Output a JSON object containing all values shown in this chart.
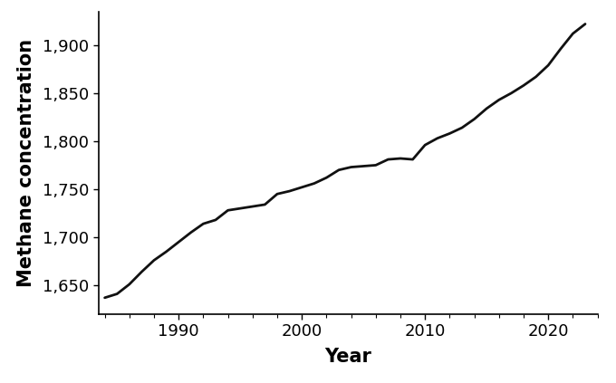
{
  "years": [
    1984,
    1985,
    1986,
    1987,
    1988,
    1989,
    1990,
    1991,
    1992,
    1993,
    1994,
    1995,
    1996,
    1997,
    1998,
    1999,
    2000,
    2001,
    2002,
    2003,
    2004,
    2005,
    2006,
    2007,
    2008,
    2009,
    2010,
    2011,
    2012,
    2013,
    2014,
    2015,
    2016,
    2017,
    2018,
    2019,
    2020,
    2021,
    2022,
    2023
  ],
  "methane": [
    1637,
    1641,
    1651,
    1664,
    1676,
    1685,
    1695,
    1705,
    1714,
    1718,
    1728,
    1730,
    1732,
    1734,
    1745,
    1748,
    1752,
    1756,
    1762,
    1770,
    1773,
    1774,
    1775,
    1781,
    1782,
    1781,
    1796,
    1803,
    1808,
    1814,
    1823,
    1834,
    1843,
    1850,
    1858,
    1867,
    1879,
    1896,
    1912,
    1922
  ],
  "xlabel": "Year",
  "ylabel": "Methane concentration",
  "xlim": [
    1983.5,
    2024
  ],
  "ylim": [
    1620,
    1935
  ],
  "yticks": [
    1650,
    1700,
    1750,
    1800,
    1850,
    1900
  ],
  "xticks": [
    1990,
    2000,
    2010,
    2020
  ],
  "line_color": "#111111",
  "line_width": 2.0,
  "bg_color": "#ffffff",
  "label_fontsize": 15,
  "tick_fontsize": 13
}
